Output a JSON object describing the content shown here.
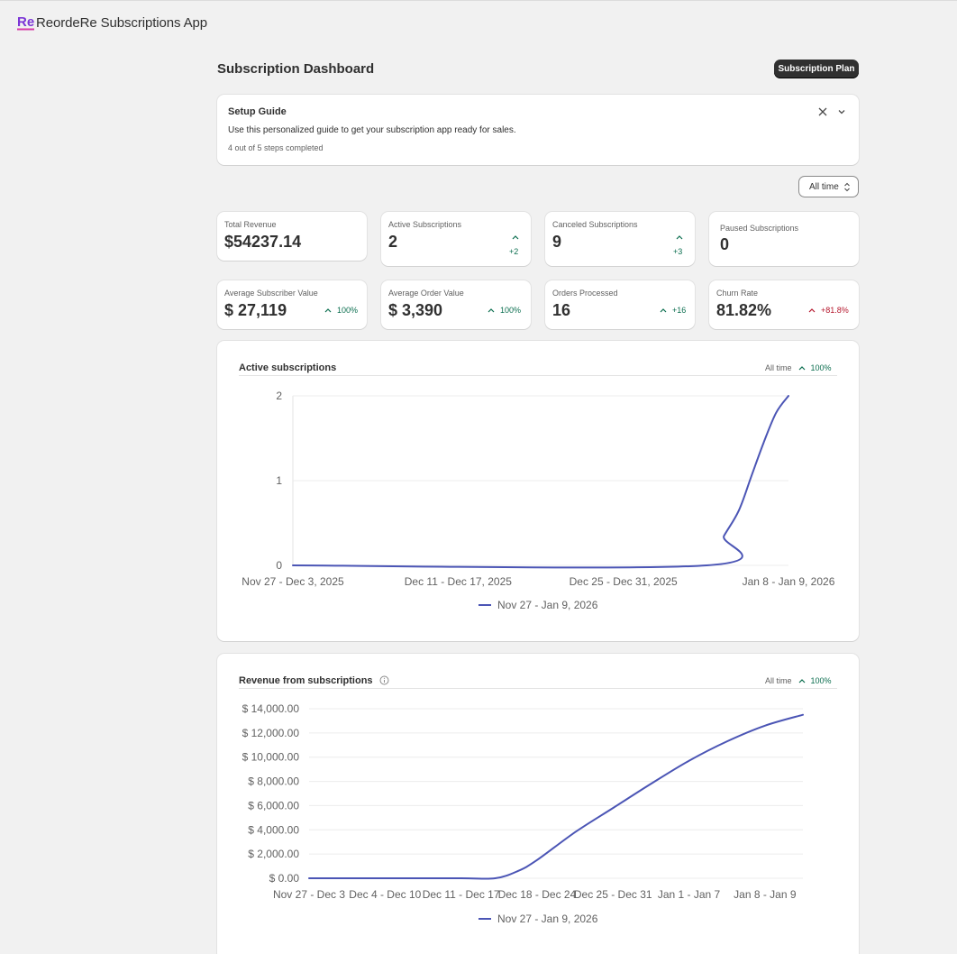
{
  "app": {
    "title": "ReordeRe Subscriptions App",
    "logo_icon": "reordere-logo-icon",
    "logo_color": "#7b35d6"
  },
  "page": {
    "title": "Subscription Dashboard",
    "plan_button": "Subscription Plan"
  },
  "setup_guide": {
    "title": "Setup Guide",
    "description": "Use this personalized guide to get your subscription app ready for sales.",
    "progress": "4 out of 5 steps completed",
    "steps_completed": 4,
    "steps_total": 5
  },
  "filter": {
    "label": "All time"
  },
  "stats": [
    {
      "label": "Total Revenue",
      "value": "$54237.14",
      "trend": ""
    },
    {
      "label": "Active Subscriptions",
      "value": "2",
      "trend": "+2",
      "direction": "up"
    },
    {
      "label": "Canceled Subscriptions",
      "value": "9",
      "trend": "+3",
      "direction": "up"
    },
    {
      "label": "Paused Subscriptions",
      "value": "0",
      "trend": ""
    },
    {
      "label": "Average Subscriber Value",
      "value": "$ 27,119",
      "trend": "100%",
      "direction": "up"
    },
    {
      "label": "Average Order Value",
      "value": "$ 3,390",
      "trend": "100%",
      "direction": "up"
    },
    {
      "label": "Orders Processed",
      "value": "16",
      "trend": "+16",
      "direction": "up"
    },
    {
      "label": "Churn Rate",
      "value": "81.82%",
      "trend": "+81.8%",
      "direction": "up-negative"
    }
  ],
  "colors": {
    "series": "#4b55b5",
    "trend_up": "#0b6e4f",
    "trend_negative": "#b5172d"
  },
  "charts": {
    "active": {
      "title": "Active subscriptions",
      "range": "All time",
      "change": "100%"
    },
    "revenue": {
      "title": "Revenue from subscriptions",
      "range": "All time",
      "change": "100%",
      "info_icon": "info-icon"
    }
  },
  "chart_data": [
    {
      "type": "line",
      "title": "Active subscriptions",
      "categories": [
        "Nov 27 - Dec 3, 2025",
        "Dec 11 - Dec 17, 2025",
        "Dec 25 - Dec 31, 2025",
        "Jan 8 - Jan 9, 2026"
      ],
      "yticks": [
        0,
        1,
        2
      ],
      "ylim": [
        0,
        2
      ],
      "grid": true,
      "legend": "bottom",
      "series": [
        {
          "name": "Nov 27 - Jan 9, 2026",
          "points": [
            [
              0,
              0
            ],
            [
              0.835,
              0
            ],
            [
              0.87,
              0.35
            ],
            [
              0.9,
              0.65
            ],
            [
              0.925,
              1.05
            ],
            [
              0.95,
              1.45
            ],
            [
              0.975,
              1.8
            ],
            [
              1,
              2
            ]
          ]
        }
      ]
    },
    {
      "type": "line",
      "title": "Revenue from subscriptions",
      "categories": [
        "Nov 27 - Dec 3",
        "Dec 4 - Dec 10",
        "Dec 11 - Dec 17",
        "Dec 18 - Dec 24",
        "Dec 25 - Dec 31",
        "Jan 1 - Jan 7",
        "Jan 8 - Jan 9"
      ],
      "yticks": [
        "$ 0.00",
        "$ 2,000.00",
        "$ 4,000.00",
        "$ 6,000.00",
        "$ 8,000.00",
        "$ 10,000.00",
        "$ 12,000.00",
        "$ 14,000.00"
      ],
      "ylim": [
        0,
        14000
      ],
      "grid": true,
      "legend": "bottom",
      "series": [
        {
          "name": "Nov 27 - Jan 9, 2026",
          "points": [
            [
              0,
              0
            ],
            [
              1,
              0
            ],
            [
              2,
              0
            ],
            [
              2.45,
              0
            ],
            [
              2.75,
              600
            ],
            [
              3,
              1500
            ],
            [
              3.5,
              3800
            ],
            [
              4,
              5800
            ],
            [
              4.5,
              7800
            ],
            [
              5,
              9700
            ],
            [
              5.5,
              11300
            ],
            [
              6,
              12600
            ],
            [
              6.5,
              13500
            ]
          ]
        }
      ]
    }
  ]
}
